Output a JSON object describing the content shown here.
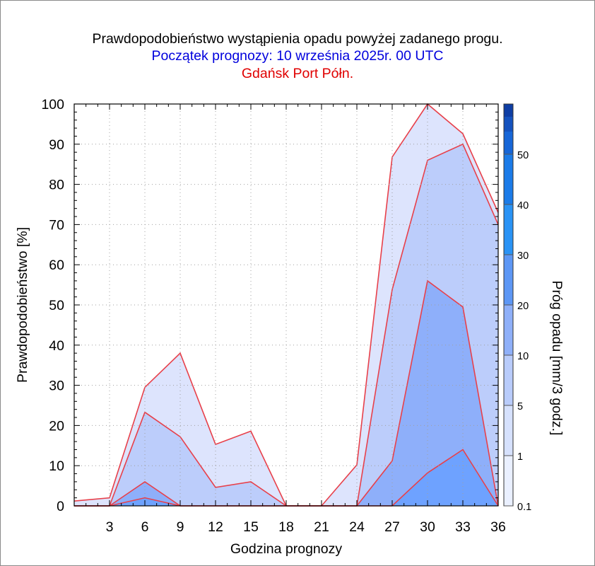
{
  "chart_data": {
    "type": "area",
    "title": "Prawdopodobieństwo wystąpienia opadu powyżej zadanego progu.",
    "subtitle": "Początek prognozy: 10 września 2025r. 00 UTC",
    "location": "Gdańsk Port Półn.",
    "xlabel": "Godzina prognozy",
    "ylabel": "Prawdopodobieństwo [%]",
    "colorbar_label": "Próg opadu [mm/3 godz.]",
    "x_ticks": [
      "3",
      "6",
      "9",
      "12",
      "15",
      "18",
      "21",
      "24",
      "27",
      "30",
      "33",
      "36"
    ],
    "y_ticks": [
      "0",
      "10",
      "20",
      "30",
      "40",
      "50",
      "60",
      "70",
      "80",
      "90",
      "100"
    ],
    "xlim": [
      0,
      36
    ],
    "ylim": [
      0,
      100
    ],
    "grid": true,
    "x": [
      0,
      3,
      6,
      9,
      12,
      15,
      18,
      21,
      24,
      27,
      30,
      33,
      36
    ],
    "series": [
      {
        "threshold": 0.1,
        "color": "#dde4fd",
        "values": [
          1.2,
          2,
          29.5,
          38,
          15.3,
          18.6,
          0,
          0,
          10.2,
          86.8,
          100,
          92.6,
          73
        ]
      },
      {
        "threshold": 1,
        "color": "#bccdfb",
        "values": [
          0,
          0,
          23.3,
          17.2,
          4.6,
          6,
          0,
          0,
          0,
          53.8,
          86,
          90,
          70
        ]
      },
      {
        "threshold": 5,
        "color": "#8eaffa",
        "values": [
          0,
          0,
          6,
          0,
          0,
          0,
          0,
          0,
          0,
          11.2,
          56,
          49.5,
          0
        ]
      },
      {
        "threshold": 10,
        "color": "#6ea2ff",
        "values": [
          0,
          0,
          2,
          0,
          0,
          0,
          0,
          0,
          0,
          0,
          8.2,
          14,
          0
        ]
      }
    ],
    "colorbar": {
      "labels": [
        "0.1",
        "1",
        "5",
        "10",
        "20",
        "30",
        "40",
        "50"
      ],
      "colors": [
        "#eaf0ff",
        "#d6e1fd",
        "#b9ccfb",
        "#8fb0f9",
        "#5d97f5",
        "#2a93f5",
        "#1b7be8",
        "#1766d7",
        "#1452be",
        "#0e3ea4"
      ]
    }
  }
}
